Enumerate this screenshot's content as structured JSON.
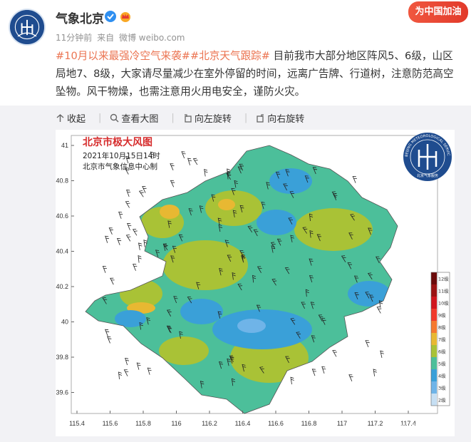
{
  "post": {
    "username": "气象北京",
    "meta_time": "11分钟前",
    "meta_from_prefix": "来自",
    "meta_source": "微博 weibo.com",
    "promo": "为中国加油",
    "tag1": "#10月以来最强冷空气来袭#",
    "tag2": "#北京天气跟踪#",
    "text": "目前我市大部分地区阵风5、6级，山区局地7、8级，大家请尽量减少在室外停留的时间，远离广告牌、行道树，注意防范高空坠物。风干物燥，也需注意用火用电安全，谨防火灾。"
  },
  "toolbar": {
    "collapse": "收起",
    "view_large": "查看大图",
    "rotate_left": "向左旋转",
    "rotate_right": "向右旋转"
  },
  "map": {
    "title": "北京市极大风图",
    "date": "2021年10月15日14时",
    "producer": "北京市气象信息中心制",
    "logo_text": "BEIJING METEOROLOGICAL SERVICE",
    "logo_cn": "北京气象服务",
    "watermark": "@气象北京",
    "y_ticks": [
      "41",
      "40.8",
      "40.6",
      "40.4",
      "40.2",
      "40",
      "39.8",
      "39.6"
    ],
    "x_ticks": [
      "115.4",
      "115.6",
      "115.8",
      "116",
      "116.2",
      "116.4",
      "116.6",
      "116.8",
      "117",
      "117.2",
      "117.4"
    ],
    "legend": [
      {
        "label": "12级",
        "color": "#6b0a0a"
      },
      {
        "label": "11级",
        "color": "#9b1212"
      },
      {
        "label": "10级",
        "color": "#d0151d"
      },
      {
        "label": "9级",
        "color": "#f0392b"
      },
      {
        "label": "8级",
        "color": "#f5792f"
      },
      {
        "label": "7级",
        "color": "#e8b832"
      },
      {
        "label": "6级",
        "color": "#a9c236"
      },
      {
        "label": "5级",
        "color": "#4cbf9a"
      },
      {
        "label": "4级",
        "color": "#3aa0d8"
      },
      {
        "label": "3级",
        "color": "#6fb4e8"
      },
      {
        "label": "2级",
        "color": "#c6dff3"
      }
    ]
  }
}
